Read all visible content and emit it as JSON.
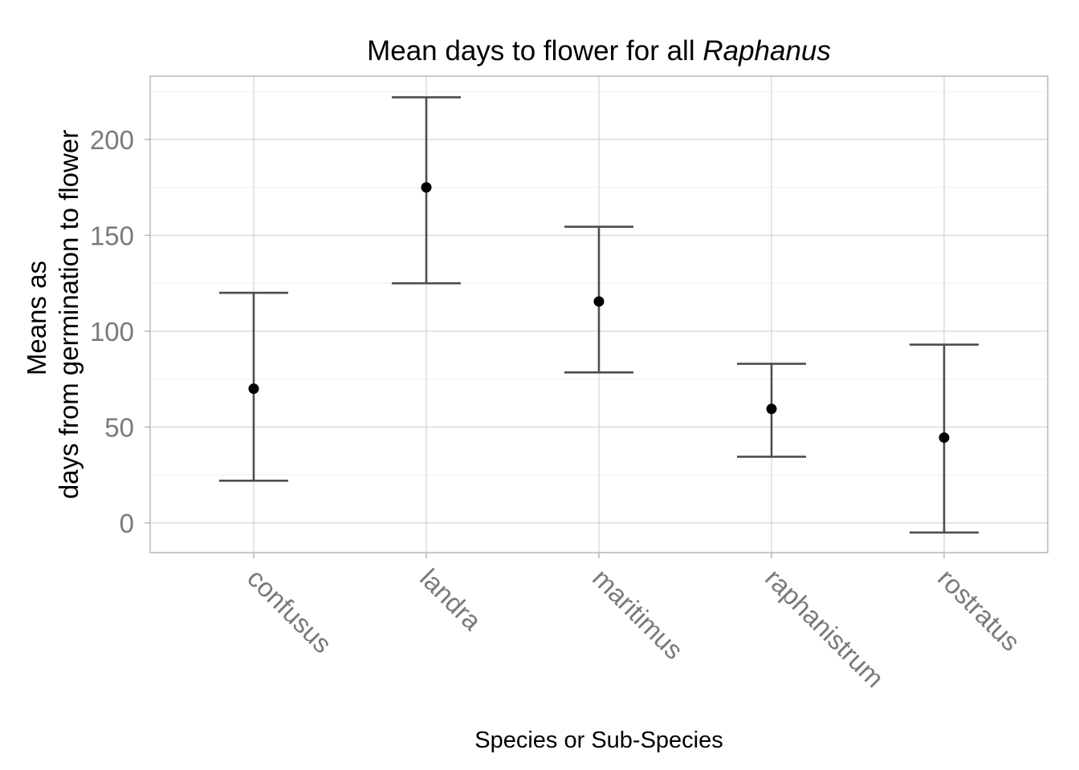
{
  "chart_data": {
    "type": "scatter",
    "title_plain": "Mean days to flower for all ",
    "title_italic": "Raphanus",
    "xlabel": "Species or Sub-Species",
    "ylabel_line1": "Means as",
    "ylabel_line2": "days from germination to flower",
    "categories": [
      "confusus",
      "landra",
      "maritimus",
      "raphanistrum",
      "rostratus"
    ],
    "series": [
      {
        "means": [
          70,
          175,
          115.5,
          59.5,
          44.5
        ],
        "lower": [
          22,
          125,
          78.5,
          34.5,
          -5
        ],
        "upper": [
          120,
          222,
          154.5,
          83,
          93
        ]
      }
    ],
    "ylim": [
      -15.5,
      233
    ],
    "yticks": [
      0,
      50,
      100,
      150,
      200
    ],
    "grid": true,
    "legend": "none",
    "colors": {
      "point": "#000000",
      "errorbar": "#4d4d4d",
      "grid_major": "#d9d9d9",
      "grid_minor": "#f0f0f0",
      "panel_border": "#b3b3b3",
      "tick_text": "#7a7a7a"
    }
  }
}
